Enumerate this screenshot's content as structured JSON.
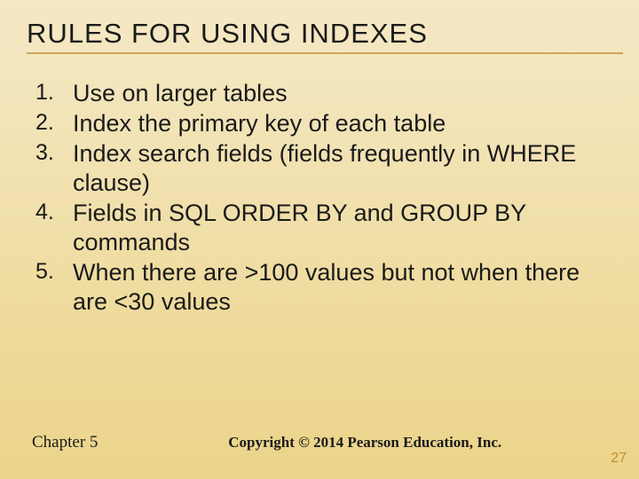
{
  "title": "RULES FOR USING INDEXES",
  "title_fontsize": 31,
  "title_color": "#1a1a1a",
  "underline_color": "#c9a95a",
  "background_gradient": [
    "#f4e8c5",
    "#f2e3b5",
    "#efdca0",
    "#ecd48a"
  ],
  "list": {
    "fontsize": 27,
    "color": "#1a1a1a",
    "items": [
      "Use on larger tables",
      "Index the primary key of each table",
      "Index search fields (fields frequently in WHERE clause)",
      "Fields in SQL ORDER BY and GROUP BY commands",
      "When there are >100 values but not when there are <30 values"
    ]
  },
  "footer": {
    "chapter": "Chapter 5",
    "chapter_fontsize": 19,
    "copyright": "Copyright © 2014 Pearson Education, Inc.",
    "copyright_fontsize": 17,
    "page_number": "27",
    "page_number_color": "#c68a2e",
    "page_number_fontsize": 16
  }
}
